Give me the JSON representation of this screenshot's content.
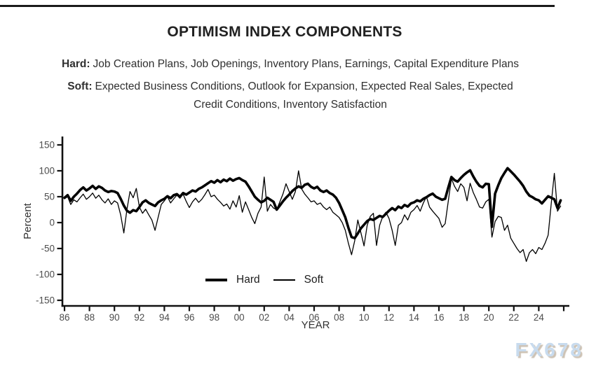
{
  "header": {
    "title": "OPTIMISM INDEX COMPONENTS",
    "hard_label": "Hard:",
    "hard_text": "Job Creation Plans, Job Openings, Inventory Plans, Earnings, Capital Expenditure Plans",
    "soft_label": "Soft:",
    "soft_line1": "Expected Business Conditions, Outlook for Expansion, Expected Real Sales, Expected",
    "soft_line2": "Credit Conditions, Inventory Satisfaction"
  },
  "legend": {
    "hard": "Hard",
    "soft": "Soft"
  },
  "watermark": "FX678",
  "colors": {
    "axis": "#111111",
    "tick_text": "#4d4d4d",
    "axis_label_text": "#333333",
    "line": "#000000",
    "watermark_fill": "#c8dbee",
    "watermark_shadow": "#cdc2b4"
  },
  "chart_data": {
    "type": "line",
    "title": "OPTIMISM INDEX COMPONENTS",
    "xlabel": "YEAR",
    "ylabel": "Percent",
    "ylim": [
      -150,
      150
    ],
    "y_ticks": [
      150,
      100,
      50,
      0,
      -50,
      -100,
      -150
    ],
    "x_ticks": [
      {
        "year": 1986,
        "label": "86"
      },
      {
        "year": 1988,
        "label": "88"
      },
      {
        "year": 1990,
        "label": "90"
      },
      {
        "year": 1992,
        "label": "92"
      },
      {
        "year": 1994,
        "label": "94"
      },
      {
        "year": 1996,
        "label": "96"
      },
      {
        "year": 1998,
        "label": "98"
      },
      {
        "year": 2000,
        "label": "00"
      },
      {
        "year": 2002,
        "label": "02"
      },
      {
        "year": 2004,
        "label": "04"
      },
      {
        "year": 2006,
        "label": "06"
      },
      {
        "year": 2008,
        "label": "08"
      },
      {
        "year": 2010,
        "label": "10"
      },
      {
        "year": 2012,
        "label": "12"
      },
      {
        "year": 2014,
        "label": "14"
      },
      {
        "year": 2016,
        "label": "16"
      },
      {
        "year": 2018,
        "label": "18"
      },
      {
        "year": 2020,
        "label": "20"
      },
      {
        "year": 2022,
        "label": "22"
      },
      {
        "year": 2024,
        "label": "24"
      },
      {
        "year": 2026,
        "label": ""
      }
    ],
    "x_start": 1986.0,
    "x_step": 0.25,
    "grid": false,
    "legend_position": "inside-bottom-center",
    "series": [
      {
        "name": "Hard",
        "style": "thick",
        "values": [
          48,
          53,
          42,
          50,
          56,
          63,
          68,
          62,
          66,
          71,
          65,
          70,
          67,
          62,
          59,
          61,
          60,
          57,
          46,
          33,
          23,
          19,
          24,
          22,
          30,
          39,
          43,
          38,
          35,
          32,
          39,
          43,
          46,
          51,
          47,
          53,
          55,
          50,
          57,
          54,
          58,
          62,
          60,
          65,
          68,
          72,
          76,
          80,
          77,
          82,
          78,
          83,
          80,
          85,
          81,
          84,
          86,
          82,
          79,
          70,
          60,
          50,
          44,
          39,
          42,
          48,
          44,
          40,
          25,
          33,
          41,
          48,
          54,
          61,
          66,
          70,
          67,
          73,
          75,
          69,
          66,
          69,
          62,
          59,
          62,
          57,
          54,
          48,
          38,
          24,
          10,
          -10,
          -28,
          -30,
          -21,
          -11,
          -4,
          3,
          7,
          5,
          9,
          13,
          11,
          17,
          23,
          28,
          24,
          31,
          28,
          34,
          31,
          37,
          39,
          43,
          41,
          46,
          49,
          53,
          56,
          50,
          47,
          44,
          46,
          68,
          88,
          82,
          79,
          86,
          92,
          97,
          101,
          89,
          79,
          71,
          68,
          75,
          74,
          -8,
          56,
          72,
          86,
          96,
          105,
          99,
          93,
          86,
          79,
          71,
          60,
          52,
          49,
          45,
          43,
          37,
          44,
          51,
          48,
          45,
          28,
          43
        ]
      },
      {
        "name": "Soft",
        "style": "thin",
        "values": [
          46,
          50,
          35,
          44,
          40,
          48,
          55,
          45,
          50,
          57,
          47,
          53,
          44,
          38,
          46,
          35,
          42,
          38,
          15,
          -20,
          25,
          60,
          48,
          66,
          30,
          18,
          26,
          15,
          5,
          -15,
          10,
          35,
          42,
          50,
          38,
          46,
          53,
          47,
          55,
          41,
          29,
          40,
          47,
          39,
          45,
          54,
          64,
          50,
          53,
          45,
          39,
          32,
          36,
          26,
          42,
          30,
          52,
          20,
          40,
          25,
          10,
          -2,
          18,
          30,
          88,
          22,
          35,
          28,
          25,
          40,
          55,
          75,
          60,
          45,
          60,
          100,
          65,
          55,
          48,
          40,
          42,
          35,
          38,
          30,
          25,
          30,
          20,
          15,
          10,
          0,
          -15,
          -40,
          -62,
          -35,
          5,
          -20,
          -45,
          -5,
          12,
          18,
          -44,
          -5,
          12,
          20,
          8,
          -15,
          -44,
          -5,
          0,
          15,
          5,
          20,
          25,
          33,
          22,
          38,
          50,
          30,
          22,
          15,
          8,
          -9,
          -2,
          42,
          85,
          70,
          60,
          75,
          68,
          42,
          76,
          58,
          45,
          30,
          28,
          40,
          45,
          -28,
          2,
          12,
          10,
          -15,
          -5,
          -30,
          -40,
          -50,
          -58,
          -52,
          -75,
          -58,
          -52,
          -60,
          -48,
          -52,
          -40,
          -24,
          37,
          95,
          22,
          32
        ]
      }
    ]
  }
}
